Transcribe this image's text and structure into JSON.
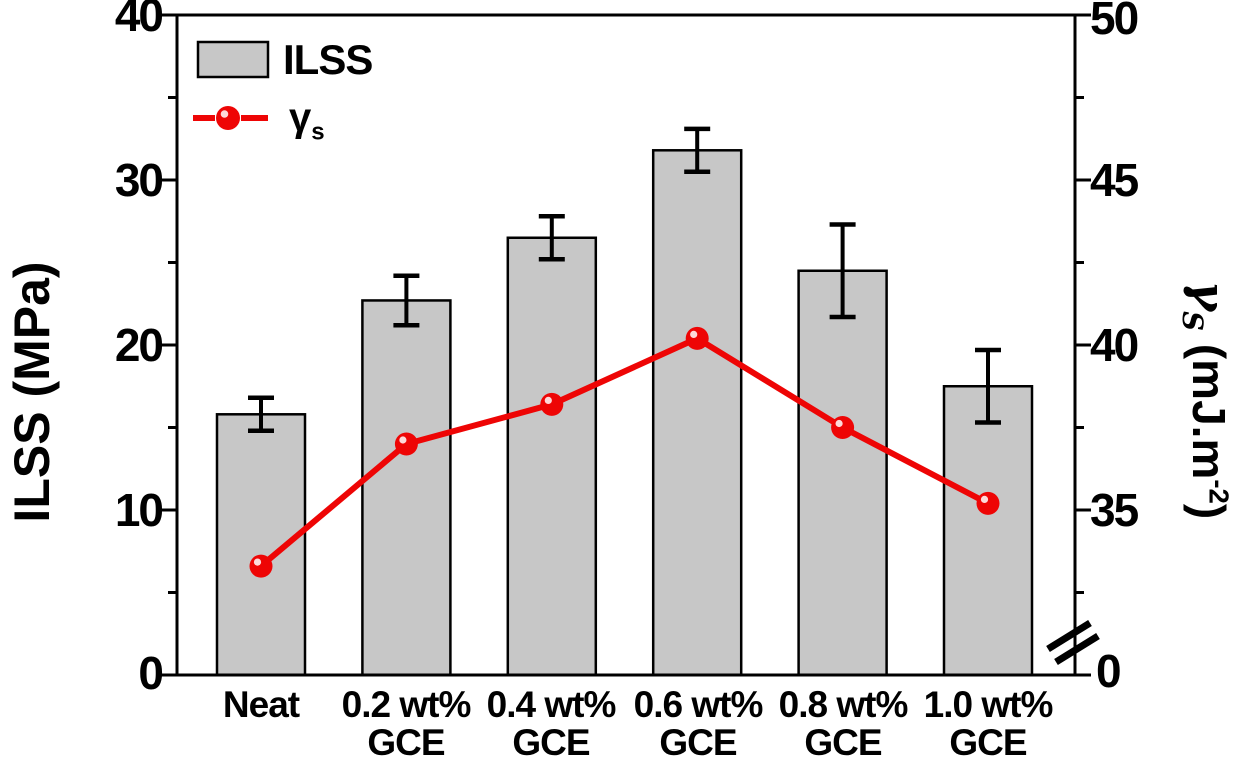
{
  "figure": {
    "background": "#ffffff",
    "legend": {
      "position": "top-left",
      "items": [
        {
          "label": "ILSS",
          "swatch": "gray-bar-swatch"
        },
        {
          "symbol": "γ",
          "symbol_sub": "s",
          "swatch": "red-line-marker-swatch"
        }
      ]
    },
    "left_axis": {
      "title": "ILSS (MPa)",
      "tick_labels": [
        "40",
        "30",
        "20",
        "10",
        "0"
      ],
      "minor_ticks": [
        35,
        25,
        15,
        5
      ],
      "range": [
        0,
        40
      ]
    },
    "right_axis": {
      "title_symbol": "γ",
      "title_symbol_sub": "S",
      "title_unit_prefix": " (mJ.m",
      "title_unit_sup": "-2",
      "title_unit_suffix": ")",
      "tick_labels": [
        "50",
        "45",
        "40",
        "35",
        "0"
      ],
      "minor_ticks": [
        47.5,
        42.5,
        37.5,
        32.5
      ],
      "shown_range": [
        35,
        50
      ],
      "axis_break": true
    },
    "colors": {
      "bar_fill": "#c7c7c7",
      "bar_stroke": "#000000",
      "line": "#ee0505",
      "marker": "#ee0505",
      "error": "#000000",
      "text": "#000000"
    }
  },
  "chart_data": {
    "type": "bar+line",
    "title": "",
    "categories": [
      "Neat",
      "0.2 wt% GCE",
      "0.4 wt% GCE",
      "0.6 wt% GCE",
      "0.8 wt% GCE",
      "1.0 wt% GCE"
    ],
    "x_labels": [
      {
        "line1": "Neat",
        "line2": ""
      },
      {
        "line1": "0.2 wt%",
        "line2": "GCE"
      },
      {
        "line1": "0.4 wt%",
        "line2": "GCE"
      },
      {
        "line1": "0.6 wt%",
        "line2": "GCE"
      },
      {
        "line1": "0.8 wt%",
        "line2": "GCE"
      },
      {
        "line1": "1.0 wt%",
        "line2": "GCE"
      }
    ],
    "series": [
      {
        "name": "ILSS",
        "type": "bar",
        "axis": "left",
        "unit": "MPa",
        "values": [
          15.8,
          22.7,
          26.5,
          31.8,
          24.5,
          17.5
        ],
        "errors": [
          1.0,
          1.5,
          1.3,
          1.3,
          2.8,
          2.2
        ]
      },
      {
        "name": "γs",
        "type": "line",
        "axis": "right",
        "unit": "mJ.m-2",
        "values": [
          33.3,
          37.0,
          38.2,
          40.2,
          37.5,
          35.2
        ]
      }
    ],
    "left_ylim": [
      0,
      40
    ],
    "right_axis_shown_range": [
      35,
      50
    ],
    "right_axis_has_zero_break": true,
    "grid": false,
    "legend_position": "top-left"
  }
}
